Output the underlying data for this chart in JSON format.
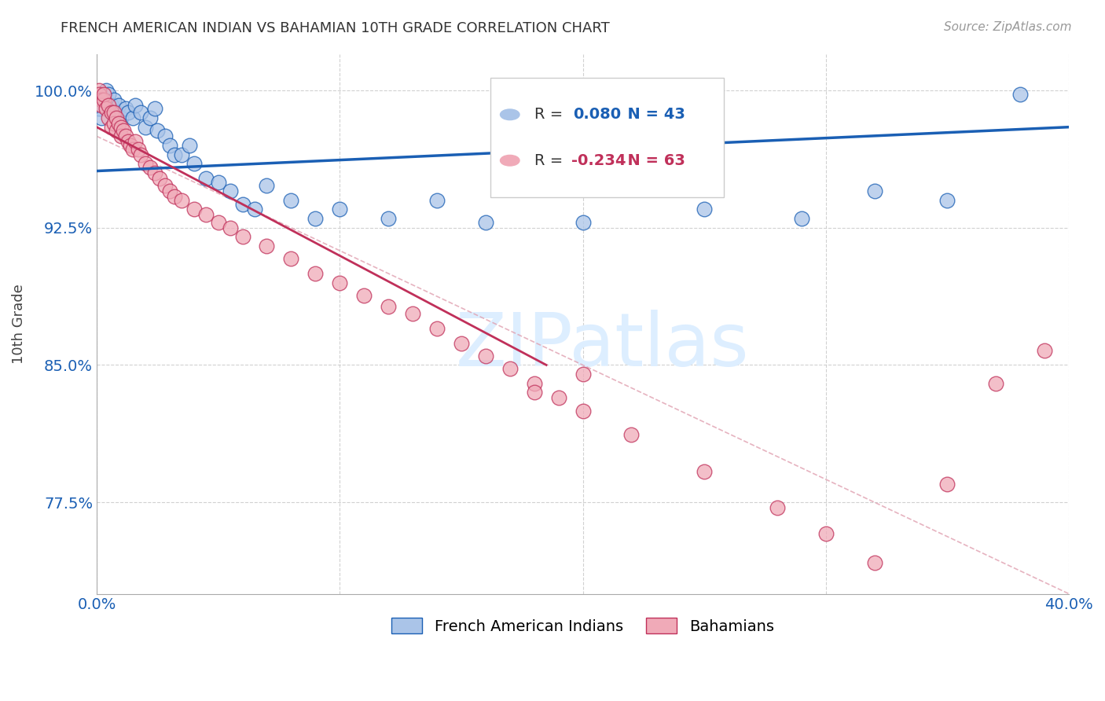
{
  "title": "FRENCH AMERICAN INDIAN VS BAHAMIAN 10TH GRADE CORRELATION CHART",
  "source": "Source: ZipAtlas.com",
  "ylabel": "10th Grade",
  "legend_blue_r_val": "0.080",
  "legend_blue_n_val": "43",
  "legend_pink_r_val": "-0.234",
  "legend_pink_n_val": "63",
  "legend_blue_label": "French American Indians",
  "legend_pink_label": "Bahamians",
  "blue_scatter_x": [
    0.001,
    0.002,
    0.003,
    0.004,
    0.005,
    0.006,
    0.007,
    0.008,
    0.009,
    0.01,
    0.012,
    0.013,
    0.015,
    0.016,
    0.018,
    0.02,
    0.022,
    0.024,
    0.025,
    0.028,
    0.03,
    0.032,
    0.035,
    0.038,
    0.04,
    0.045,
    0.05,
    0.055,
    0.06,
    0.065,
    0.07,
    0.08,
    0.09,
    0.1,
    0.12,
    0.14,
    0.16,
    0.2,
    0.25,
    0.29,
    0.32,
    0.35,
    0.38
  ],
  "blue_scatter_y": [
    0.99,
    0.985,
    0.995,
    1.0,
    0.998,
    0.992,
    0.995,
    0.988,
    0.992,
    0.985,
    0.99,
    0.988,
    0.985,
    0.992,
    0.988,
    0.98,
    0.985,
    0.99,
    0.978,
    0.975,
    0.97,
    0.965,
    0.965,
    0.97,
    0.96,
    0.952,
    0.95,
    0.945,
    0.938,
    0.935,
    0.948,
    0.94,
    0.93,
    0.935,
    0.93,
    0.94,
    0.928,
    0.928,
    0.935,
    0.93,
    0.945,
    0.94,
    0.998
  ],
  "pink_scatter_x": [
    0.001,
    0.001,
    0.002,
    0.002,
    0.003,
    0.003,
    0.004,
    0.005,
    0.005,
    0.006,
    0.006,
    0.007,
    0.007,
    0.008,
    0.008,
    0.009,
    0.01,
    0.01,
    0.011,
    0.012,
    0.013,
    0.014,
    0.015,
    0.016,
    0.017,
    0.018,
    0.02,
    0.022,
    0.024,
    0.026,
    0.028,
    0.03,
    0.032,
    0.035,
    0.04,
    0.045,
    0.05,
    0.055,
    0.06,
    0.07,
    0.08,
    0.09,
    0.1,
    0.11,
    0.12,
    0.13,
    0.14,
    0.15,
    0.16,
    0.17,
    0.18,
    0.19,
    0.2,
    0.22,
    0.25,
    0.28,
    0.3,
    0.32,
    0.35,
    0.37,
    0.39,
    0.18,
    0.2
  ],
  "pink_scatter_y": [
    1.0,
    0.998,
    0.995,
    0.992,
    0.995,
    0.998,
    0.99,
    0.992,
    0.985,
    0.988,
    0.98,
    0.988,
    0.982,
    0.985,
    0.978,
    0.982,
    0.98,
    0.975,
    0.978,
    0.975,
    0.972,
    0.97,
    0.968,
    0.972,
    0.968,
    0.965,
    0.96,
    0.958,
    0.955,
    0.952,
    0.948,
    0.945,
    0.942,
    0.94,
    0.935,
    0.932,
    0.928,
    0.925,
    0.92,
    0.915,
    0.908,
    0.9,
    0.895,
    0.888,
    0.882,
    0.878,
    0.87,
    0.862,
    0.855,
    0.848,
    0.84,
    0.832,
    0.825,
    0.812,
    0.792,
    0.772,
    0.758,
    0.742,
    0.785,
    0.84,
    0.858,
    0.835,
    0.845
  ],
  "blue_color": "#aac4e8",
  "pink_color": "#f0aab8",
  "blue_line_color": "#1a5fb4",
  "pink_line_color": "#c0305a",
  "dashed_line_color": "#e0a0b0",
  "watermark_color": "#ddeeff",
  "watermark": "ZIPatlas",
  "xlim": [
    0.0,
    0.4
  ],
  "ylim": [
    0.725,
    1.02
  ],
  "y_ticks": [
    0.775,
    0.85,
    0.925,
    1.0
  ],
  "y_tick_labels": [
    "77.5%",
    "85.0%",
    "92.5%",
    "100.0%"
  ],
  "x_ticks": [
    0.0,
    0.1,
    0.2,
    0.3,
    0.4
  ],
  "x_tick_labels": [
    "0.0%",
    "",
    "",
    "",
    "40.0%"
  ],
  "blue_line_endpoints_x": [
    0.0,
    0.4
  ],
  "blue_line_endpoints_y": [
    0.956,
    0.98
  ],
  "pink_line_endpoints_x": [
    0.0,
    0.185
  ],
  "pink_line_endpoints_y": [
    0.98,
    0.85
  ],
  "dashed_line_x": [
    0.0,
    0.4
  ],
  "dashed_line_y": [
    0.975,
    0.725
  ]
}
